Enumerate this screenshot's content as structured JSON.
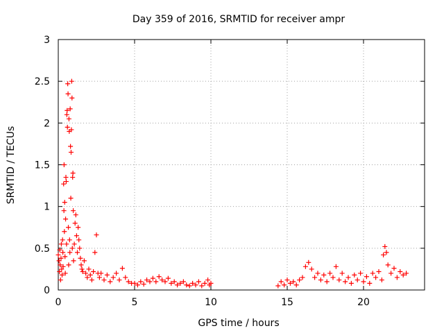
{
  "chart_data": {
    "type": "scatter",
    "title": "Day 359 of 2016, SRMTID for receiver ampr",
    "xlabel": "GPS time / hours",
    "ylabel": "SRMTID / TECUs",
    "xlim": [
      0,
      24
    ],
    "ylim": [
      0,
      3
    ],
    "xticks": [
      0,
      5,
      10,
      15,
      20
    ],
    "yticks": [
      0,
      0.5,
      1,
      1.5,
      2,
      2.5,
      3
    ],
    "xtick_labels": [
      "0",
      "5",
      "10",
      "15",
      "20"
    ],
    "ytick_labels": [
      "0",
      "0.5",
      "1",
      "1.5",
      "2",
      "2.5",
      "3"
    ],
    "grid": true,
    "marker": "plus",
    "color": "#ff0000",
    "series": [
      {
        "points": [
          [
            0.0,
            0.42
          ],
          [
            0.05,
            0.35
          ],
          [
            0.08,
            0.22
          ],
          [
            0.1,
            0.48
          ],
          [
            0.12,
            0.3
          ],
          [
            0.15,
            0.12
          ],
          [
            0.18,
            0.38
          ],
          [
            0.2,
            0.55
          ],
          [
            0.22,
            0.25
          ],
          [
            0.25,
            0.18
          ],
          [
            0.28,
            0.6
          ],
          [
            0.3,
            0.45
          ],
          [
            0.32,
            0.28
          ],
          [
            0.35,
            1.27
          ],
          [
            0.37,
            0.95
          ],
          [
            0.38,
            1.5
          ],
          [
            0.4,
            0.7
          ],
          [
            0.42,
            1.05
          ],
          [
            0.44,
            0.4
          ],
          [
            0.46,
            0.2
          ],
          [
            0.48,
            0.85
          ],
          [
            0.5,
            1.35
          ],
          [
            0.52,
            1.3
          ],
          [
            0.54,
            0.55
          ],
          [
            0.56,
            2.1
          ],
          [
            0.58,
            2.15
          ],
          [
            0.6,
            1.95
          ],
          [
            0.62,
            2.47
          ],
          [
            0.64,
            2.35
          ],
          [
            0.66,
            0.75
          ],
          [
            0.68,
            0.3
          ],
          [
            0.7,
            2.05
          ],
          [
            0.72,
            1.9
          ],
          [
            0.74,
            0.6
          ],
          [
            0.76,
            0.45
          ],
          [
            0.78,
            2.17
          ],
          [
            0.8,
            1.72
          ],
          [
            0.82,
            1.1
          ],
          [
            0.84,
            1.65
          ],
          [
            0.86,
            1.92
          ],
          [
            0.88,
            2.5
          ],
          [
            0.9,
            2.3
          ],
          [
            0.92,
            0.5
          ],
          [
            0.94,
            1.35
          ],
          [
            0.96,
            1.4
          ],
          [
            0.98,
            0.95
          ],
          [
            1.0,
            0.35
          ],
          [
            1.05,
            0.55
          ],
          [
            1.1,
            0.8
          ],
          [
            1.15,
            0.9
          ],
          [
            1.2,
            0.65
          ],
          [
            1.25,
            0.45
          ],
          [
            1.3,
            0.75
          ],
          [
            1.35,
            0.6
          ],
          [
            1.4,
            0.5
          ],
          [
            1.45,
            0.38
          ],
          [
            1.5,
            0.3
          ],
          [
            1.55,
            0.25
          ],
          [
            1.6,
            0.22
          ],
          [
            1.7,
            0.35
          ],
          [
            1.8,
            0.2
          ],
          [
            1.9,
            0.15
          ],
          [
            2.0,
            0.25
          ],
          [
            2.1,
            0.18
          ],
          [
            2.2,
            0.12
          ],
          [
            2.3,
            0.22
          ],
          [
            2.4,
            0.45
          ],
          [
            2.5,
            0.66
          ],
          [
            2.6,
            0.2
          ],
          [
            2.7,
            0.15
          ],
          [
            2.8,
            0.2
          ],
          [
            3.0,
            0.12
          ],
          [
            3.2,
            0.18
          ],
          [
            3.4,
            0.1
          ],
          [
            3.6,
            0.15
          ],
          [
            3.8,
            0.2
          ],
          [
            4.0,
            0.12
          ],
          [
            4.2,
            0.26
          ],
          [
            4.4,
            0.15
          ],
          [
            4.6,
            0.1
          ],
          [
            4.8,
            0.08
          ],
          [
            5.0,
            0.08
          ],
          [
            5.2,
            0.06
          ],
          [
            5.4,
            0.1
          ],
          [
            5.6,
            0.07
          ],
          [
            5.8,
            0.12
          ],
          [
            6.0,
            0.1
          ],
          [
            6.2,
            0.14
          ],
          [
            6.4,
            0.1
          ],
          [
            6.6,
            0.16
          ],
          [
            6.8,
            0.12
          ],
          [
            7.0,
            0.1
          ],
          [
            7.2,
            0.14
          ],
          [
            7.4,
            0.08
          ],
          [
            7.6,
            0.1
          ],
          [
            7.8,
            0.06
          ],
          [
            8.0,
            0.08
          ],
          [
            8.2,
            0.1
          ],
          [
            8.4,
            0.06
          ],
          [
            8.6,
            0.05
          ],
          [
            8.8,
            0.08
          ],
          [
            9.0,
            0.06
          ],
          [
            9.2,
            0.1
          ],
          [
            9.4,
            0.05
          ],
          [
            9.6,
            0.08
          ],
          [
            9.8,
            0.12
          ],
          [
            9.9,
            0.06
          ],
          [
            10.0,
            0.08
          ],
          [
            14.4,
            0.05
          ],
          [
            14.6,
            0.1
          ],
          [
            14.8,
            0.06
          ],
          [
            15.0,
            0.12
          ],
          [
            15.2,
            0.08
          ],
          [
            15.4,
            0.1
          ],
          [
            15.6,
            0.06
          ],
          [
            15.8,
            0.12
          ],
          [
            16.0,
            0.15
          ],
          [
            16.2,
            0.28
          ],
          [
            16.4,
            0.33
          ],
          [
            16.6,
            0.25
          ],
          [
            16.8,
            0.15
          ],
          [
            17.0,
            0.2
          ],
          [
            17.2,
            0.12
          ],
          [
            17.4,
            0.18
          ],
          [
            17.6,
            0.1
          ],
          [
            17.8,
            0.2
          ],
          [
            18.0,
            0.15
          ],
          [
            18.2,
            0.28
          ],
          [
            18.4,
            0.12
          ],
          [
            18.6,
            0.2
          ],
          [
            18.8,
            0.1
          ],
          [
            19.0,
            0.15
          ],
          [
            19.2,
            0.08
          ],
          [
            19.4,
            0.18
          ],
          [
            19.6,
            0.12
          ],
          [
            19.8,
            0.2
          ],
          [
            20.0,
            0.1
          ],
          [
            20.2,
            0.16
          ],
          [
            20.4,
            0.08
          ],
          [
            20.6,
            0.2
          ],
          [
            20.8,
            0.15
          ],
          [
            21.0,
            0.22
          ],
          [
            21.2,
            0.12
          ],
          [
            21.3,
            0.42
          ],
          [
            21.4,
            0.52
          ],
          [
            21.5,
            0.45
          ],
          [
            21.6,
            0.3
          ],
          [
            21.8,
            0.2
          ],
          [
            22.0,
            0.26
          ],
          [
            22.2,
            0.15
          ],
          [
            22.4,
            0.22
          ],
          [
            22.6,
            0.18
          ],
          [
            22.8,
            0.2
          ]
        ]
      }
    ]
  }
}
